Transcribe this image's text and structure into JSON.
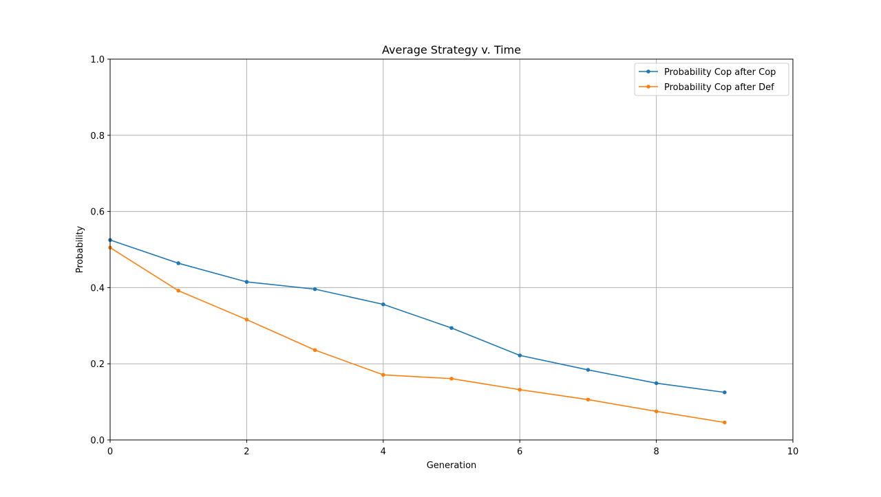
{
  "figure": {
    "background": "#ffffff"
  },
  "chart_data": {
    "type": "line",
    "title": "Average Strategy v. Time",
    "xlabel": "Generation",
    "ylabel": "Probability",
    "xlim": [
      0,
      10
    ],
    "ylim": [
      0,
      1.0
    ],
    "x_ticks": [
      0,
      2,
      4,
      6,
      8,
      10
    ],
    "x_tick_labels": [
      "0",
      "2",
      "4",
      "6",
      "8",
      "10"
    ],
    "y_ticks": [
      0,
      0.2,
      0.4,
      0.6,
      0.8,
      1.0
    ],
    "y_tick_labels": [
      "0.0",
      "0.2",
      "0.4",
      "0.6",
      "0.8",
      "1.0"
    ],
    "grid": true,
    "grid_color": "#b0b0b0",
    "legend_position": "top-right",
    "marker": "circle",
    "x": [
      0,
      1,
      2,
      3,
      4,
      5,
      6,
      7,
      8,
      9
    ],
    "series": [
      {
        "name": "Probability Cop after Cop",
        "color": "#1f77b4",
        "values": [
          0.525,
          0.464,
          0.415,
          0.396,
          0.356,
          0.294,
          0.222,
          0.184,
          0.149,
          0.125
        ]
      },
      {
        "name": "Probability Cop after Def",
        "color": "#ff7f0e",
        "values": [
          0.505,
          0.392,
          0.316,
          0.236,
          0.171,
          0.161,
          0.132,
          0.106,
          0.075,
          0.046
        ]
      }
    ]
  }
}
